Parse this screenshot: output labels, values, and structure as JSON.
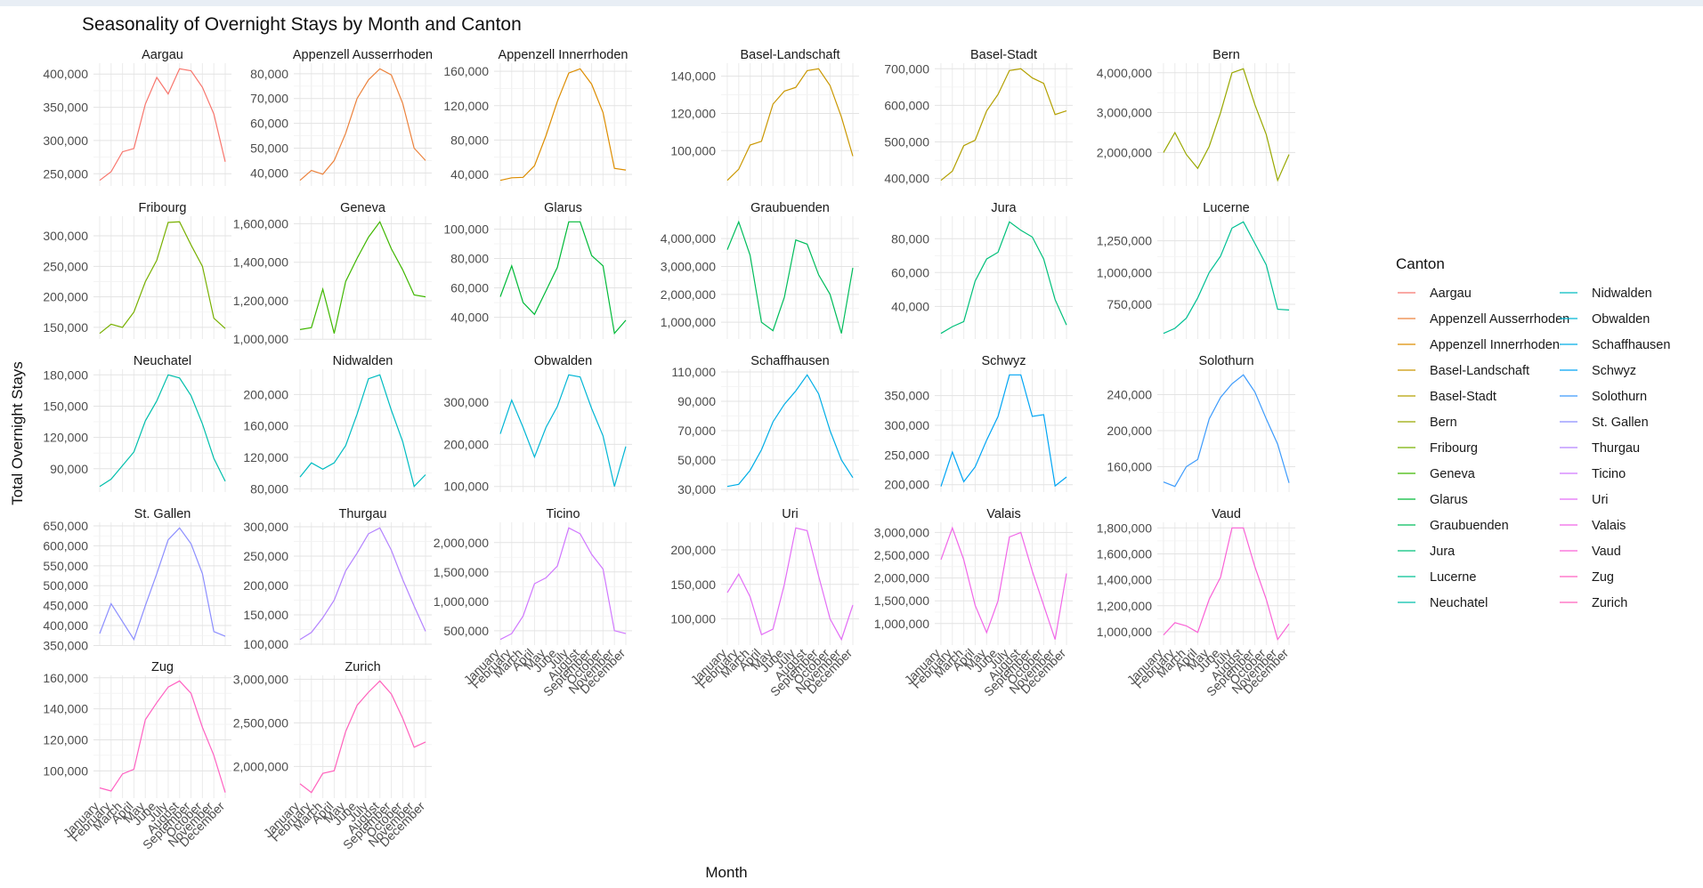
{
  "chart_data": {
    "type": "line",
    "title": "Seasonality of Overnight Stays by Month and Canton",
    "xlabel": "Month",
    "ylabel": "Total Overnight Stays",
    "legend_title": "Canton",
    "legend_position": "right",
    "grid": true,
    "months": [
      "January",
      "February",
      "March",
      "April",
      "May",
      "June",
      "July",
      "August",
      "September",
      "October",
      "November",
      "December"
    ],
    "panels": [
      {
        "name": "Aargau",
        "color": "#F8766D",
        "ticks": [
          250000,
          300000,
          350000,
          400000
        ],
        "tick_labels": [
          "250,000",
          "300,000",
          "350,000",
          "400,000"
        ],
        "values": [
          240000,
          253000,
          283000,
          288000,
          355000,
          395000,
          370000,
          408000,
          405000,
          380000,
          340000,
          268000
        ]
      },
      {
        "name": "Appenzell Ausserrhoden",
        "color": "#EC823C",
        "ticks": [
          40000,
          50000,
          60000,
          70000,
          80000
        ],
        "tick_labels": [
          "40,000",
          "50,000",
          "60,000",
          "70,000",
          "80,000"
        ],
        "values": [
          37000,
          41000,
          39500,
          45000,
          56000,
          70000,
          77500,
          82000,
          79500,
          68000,
          50000,
          45000
        ]
      },
      {
        "name": "Appenzell Innerrhoden",
        "color": "#DD8D00",
        "ticks": [
          40000,
          80000,
          120000,
          160000
        ],
        "tick_labels": [
          "40,000",
          "80,000",
          "120,000",
          "160,000"
        ],
        "values": [
          33000,
          36000,
          36500,
          50000,
          85000,
          125000,
          158000,
          163000,
          145000,
          112000,
          47000,
          45000
        ]
      },
      {
        "name": "Basel-Landschaft",
        "color": "#CA9700",
        "ticks": [
          100000,
          120000,
          140000
        ],
        "tick_labels": [
          "100,000",
          "120,000",
          "140,000"
        ],
        "values": [
          84000,
          90000,
          103000,
          105000,
          125000,
          132000,
          134000,
          143000,
          144000,
          135000,
          118000,
          97000
        ]
      },
      {
        "name": "Basel-Stadt",
        "color": "#B3A000",
        "ticks": [
          400000,
          500000,
          600000,
          700000
        ],
        "tick_labels": [
          "400,000",
          "500,000",
          "600,000",
          "700,000"
        ],
        "values": [
          395000,
          420000,
          490000,
          505000,
          585000,
          630000,
          695000,
          700000,
          675000,
          660000,
          575000,
          585000
        ]
      },
      {
        "name": "Bern",
        "color": "#99A800",
        "ticks": [
          2000000,
          3000000,
          4000000
        ],
        "tick_labels": [
          "2,000,000",
          "3,000,000",
          "4,000,000"
        ],
        "values": [
          2000000,
          2500000,
          1950000,
          1600000,
          2150000,
          3000000,
          4000000,
          4100000,
          3200000,
          2450000,
          1300000,
          1950000
        ]
      },
      {
        "name": "Fribourg",
        "color": "#78B000",
        "ticks": [
          150000,
          200000,
          250000,
          300000
        ],
        "tick_labels": [
          "150,000",
          "200,000",
          "250,000",
          "300,000"
        ],
        "values": [
          140000,
          155000,
          150000,
          175000,
          225000,
          260000,
          322000,
          323000,
          285000,
          250000,
          165000,
          148000
        ]
      },
      {
        "name": "Geneva",
        "color": "#3FB700",
        "ticks": [
          1000000,
          1200000,
          1400000,
          1600000
        ],
        "tick_labels": [
          "1,000,000",
          "1,200,000",
          "1,400,000",
          "1,600,000"
        ],
        "values": [
          1050000,
          1060000,
          1260000,
          1030000,
          1300000,
          1420000,
          1530000,
          1610000,
          1470000,
          1360000,
          1230000,
          1220000
        ]
      },
      {
        "name": "Glarus",
        "color": "#00BA38",
        "ticks": [
          40000,
          60000,
          80000,
          100000
        ],
        "tick_labels": [
          "40,000",
          "60,000",
          "80,000",
          "100,000"
        ],
        "values": [
          54000,
          75000,
          50000,
          42000,
          58000,
          74000,
          105000,
          105000,
          82000,
          75000,
          29000,
          38000
        ]
      },
      {
        "name": "Graubuenden",
        "color": "#00BD5C",
        "ticks": [
          1000000,
          2000000,
          3000000,
          4000000
        ],
        "tick_labels": [
          "1,000,000",
          "2,000,000",
          "3,000,000",
          "4,000,000"
        ],
        "values": [
          3600000,
          4600000,
          3400000,
          1000000,
          700000,
          1900000,
          3950000,
          3800000,
          2700000,
          2000000,
          600000,
          2950000
        ]
      },
      {
        "name": "Jura",
        "color": "#00C07A",
        "ticks": [
          40000,
          60000,
          80000
        ],
        "tick_labels": [
          "40,000",
          "60,000",
          "80,000"
        ],
        "values": [
          24000,
          28000,
          31000,
          55000,
          68000,
          72000,
          90000,
          85000,
          81000,
          68000,
          44000,
          29000
        ]
      },
      {
        "name": "Lucerne",
        "color": "#00C094",
        "ticks": [
          750000,
          1000000,
          1250000
        ],
        "tick_labels": [
          "750,000",
          "1,000,000",
          "1,250,000"
        ],
        "values": [
          520000,
          560000,
          640000,
          800000,
          1000000,
          1130000,
          1350000,
          1400000,
          1230000,
          1060000,
          710000,
          705000
        ]
      },
      {
        "name": "Neuchatel",
        "color": "#00BFAB",
        "ticks": [
          90000,
          120000,
          150000,
          180000
        ],
        "tick_labels": [
          "90,000",
          "120,000",
          "150,000",
          "180,000"
        ],
        "values": [
          73000,
          80000,
          93000,
          106000,
          136000,
          155000,
          180000,
          177000,
          160000,
          133000,
          100000,
          78000
        ]
      },
      {
        "name": "Nidwalden",
        "color": "#00BCC1",
        "ticks": [
          80000,
          120000,
          160000,
          200000
        ],
        "tick_labels": [
          "80,000",
          "120,000",
          "160,000",
          "200,000"
        ],
        "values": [
          95000,
          113000,
          105000,
          113000,
          135000,
          175000,
          220000,
          225000,
          180000,
          140000,
          83000,
          98000
        ]
      },
      {
        "name": "Obwalden",
        "color": "#00B6D5",
        "ticks": [
          100000,
          200000,
          300000
        ],
        "tick_labels": [
          "100,000",
          "200,000",
          "300,000"
        ],
        "values": [
          225000,
          305000,
          240000,
          170000,
          240000,
          290000,
          365000,
          360000,
          285000,
          220000,
          100000,
          195000
        ]
      },
      {
        "name": "Schaffhausen",
        "color": "#00AEE6",
        "ticks": [
          30000,
          50000,
          70000,
          90000,
          110000
        ],
        "tick_labels": [
          "30,000",
          "50,000",
          "70,000",
          "90,000",
          "110,000"
        ],
        "values": [
          32000,
          33500,
          43000,
          57000,
          76000,
          88000,
          97000,
          108000,
          95000,
          70000,
          50000,
          38000
        ]
      },
      {
        "name": "Schwyz",
        "color": "#00A5F4",
        "ticks": [
          200000,
          250000,
          300000,
          350000
        ],
        "tick_labels": [
          "200,000",
          "250,000",
          "300,000",
          "350,000"
        ],
        "values": [
          197000,
          255000,
          205000,
          230000,
          275000,
          315000,
          385000,
          385000,
          315000,
          318000,
          198000,
          213000
        ]
      },
      {
        "name": "Solothurn",
        "color": "#3D9BFC",
        "ticks": [
          160000,
          200000,
          240000
        ],
        "tick_labels": [
          "160,000",
          "200,000",
          "240,000"
        ],
        "values": [
          143000,
          138000,
          160000,
          168000,
          213000,
          237000,
          252000,
          262000,
          243000,
          213000,
          185000,
          142000
        ]
      },
      {
        "name": "St. Gallen",
        "color": "#8C8EFF",
        "ticks": [
          350000,
          400000,
          450000,
          500000,
          550000,
          600000,
          650000
        ],
        "tick_labels": [
          "350,000",
          "400,000",
          "450,000",
          "500,000",
          "550,000",
          "600,000",
          "650,000"
        ],
        "values": [
          380000,
          455000,
          410000,
          365000,
          450000,
          530000,
          615000,
          645000,
          605000,
          530000,
          385000,
          373000
        ]
      },
      {
        "name": "Thurgau",
        "color": "#B383FF",
        "ticks": [
          100000,
          150000,
          200000,
          250000,
          300000
        ],
        "tick_labels": [
          "100,000",
          "150,000",
          "200,000",
          "250,000",
          "300,000"
        ],
        "values": [
          108000,
          120000,
          145000,
          175000,
          225000,
          255000,
          288000,
          298000,
          260000,
          210000,
          165000,
          122000
        ]
      },
      {
        "name": "Ticino",
        "color": "#D077FF",
        "ticks": [
          500000,
          1000000,
          1500000,
          2000000
        ],
        "tick_labels": [
          "500,000",
          "1,000,000",
          "1,500,000",
          "2,000,000"
        ],
        "values": [
          350000,
          450000,
          750000,
          1300000,
          1400000,
          1600000,
          2250000,
          2150000,
          1800000,
          1550000,
          500000,
          450000
        ]
      },
      {
        "name": "Uri",
        "color": "#E36EF6",
        "ticks": [
          100000,
          150000,
          200000
        ],
        "tick_labels": [
          "100,000",
          "150,000",
          "200,000"
        ],
        "values": [
          138000,
          165000,
          132000,
          77000,
          85000,
          150000,
          232000,
          228000,
          162000,
          100000,
          70000,
          120000
        ]
      },
      {
        "name": "Valais",
        "color": "#F166E8",
        "ticks": [
          1000000,
          1500000,
          2000000,
          2500000,
          3000000
        ],
        "tick_labels": [
          "1,000,000",
          "1,500,000",
          "2,000,000",
          "2,500,000",
          "3,000,000"
        ],
        "values": [
          2400000,
          3100000,
          2400000,
          1400000,
          800000,
          1500000,
          2900000,
          3000000,
          2150000,
          1400000,
          650000,
          2100000
        ]
      },
      {
        "name": "Vaud",
        "color": "#FA62D6",
        "ticks": [
          1000000,
          1200000,
          1400000,
          1600000,
          1800000
        ],
        "tick_labels": [
          "1,000,000",
          "1,200,000",
          "1,400,000",
          "1,600,000",
          "1,800,000"
        ],
        "values": [
          975000,
          1070000,
          1045000,
          995000,
          1250000,
          1420000,
          1800000,
          1800000,
          1500000,
          1250000,
          940000,
          1060000
        ]
      },
      {
        "name": "Zug",
        "color": "#FF61C2",
        "ticks": [
          100000,
          120000,
          140000,
          160000
        ],
        "tick_labels": [
          "100,000",
          "120,000",
          "140,000",
          "160,000"
        ],
        "values": [
          89000,
          87000,
          98000,
          101000,
          133000,
          144000,
          154000,
          158000,
          150000,
          128000,
          110000,
          86000
        ]
      },
      {
        "name": "Zurich",
        "color": "#FF62BC",
        "ticks": [
          2000000,
          2500000,
          3000000
        ],
        "tick_labels": [
          "2,000,000",
          "2,500,000",
          "3,000,000"
        ],
        "values": [
          1800000,
          1700000,
          1920000,
          1950000,
          2400000,
          2700000,
          2850000,
          2980000,
          2830000,
          2550000,
          2220000,
          2280000
        ]
      }
    ]
  }
}
